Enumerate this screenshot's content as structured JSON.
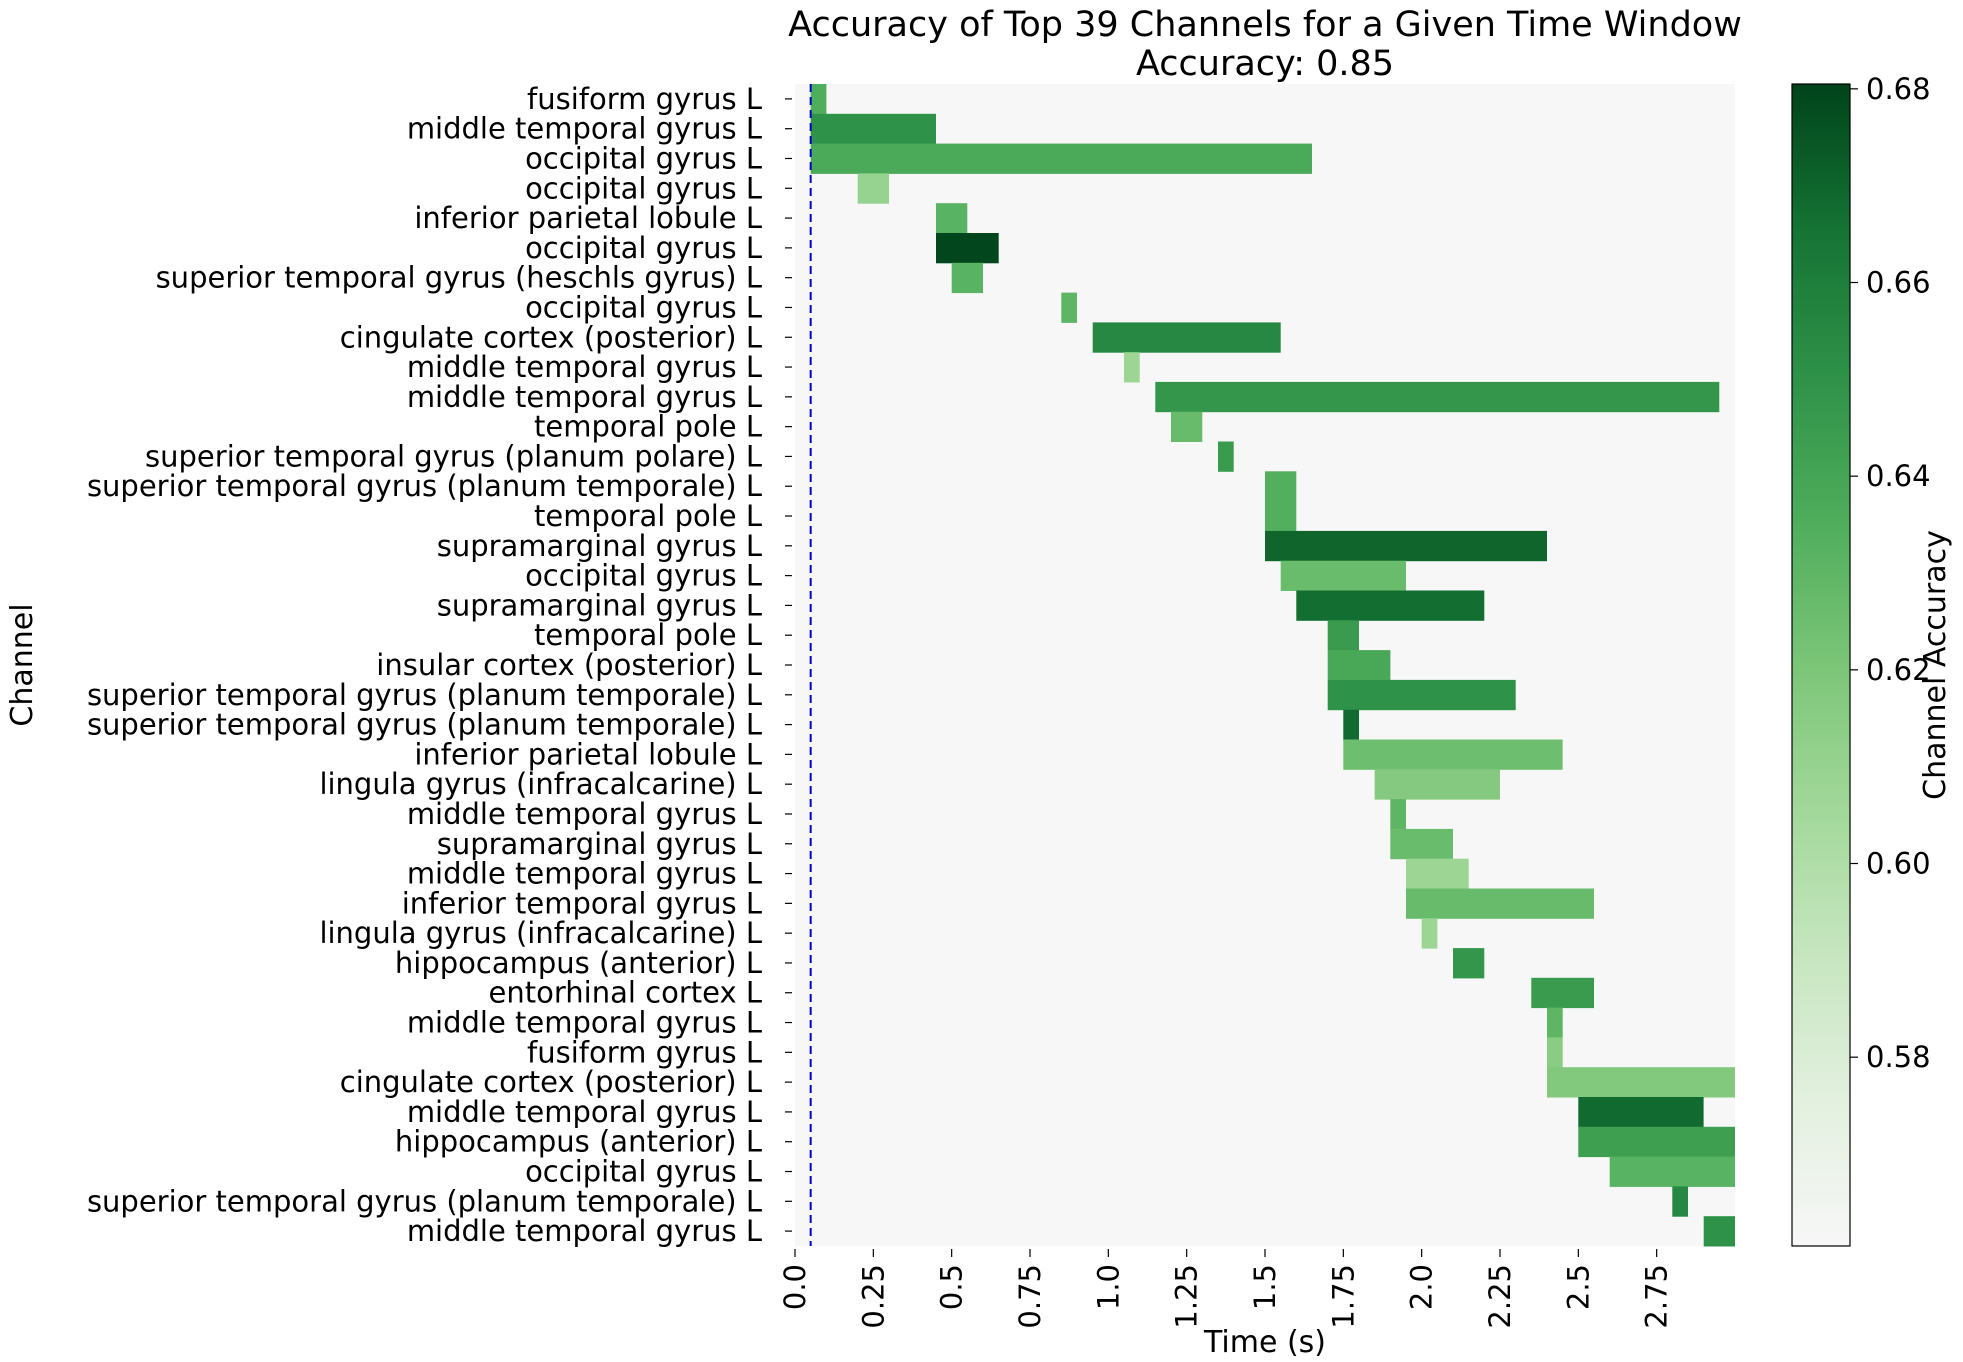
{
  "chart_data": {
    "type": "heatmap",
    "title_lines": [
      "Accuracy of Top 39 Channels for a Given Time Window",
      "Accuracy: 0.85"
    ],
    "xlabel": "Time (s)",
    "ylabel": "Channel",
    "xlim": [
      0,
      3.0
    ],
    "x_ticks": [
      0.0,
      0.25,
      0.5,
      0.75,
      1.0,
      1.25,
      1.5,
      1.75,
      2.0,
      2.25,
      2.5,
      2.75
    ],
    "x_tick_labels": [
      "0.0",
      "0.25",
      "0.5",
      "0.75",
      "1.0",
      "1.25",
      "1.5",
      "1.75",
      "2.0",
      "2.25",
      "2.5",
      "2.75"
    ],
    "reference_line_x": 0.05,
    "colorbar": {
      "label": "Channel Accuracy",
      "vmin": 0.5605,
      "vmax": 0.6805,
      "ticks": [
        0.58,
        0.6,
        0.62,
        0.64,
        0.66,
        0.68
      ],
      "tick_labels": [
        "0.58",
        "0.60",
        "0.62",
        "0.64",
        "0.66",
        "0.68"
      ]
    },
    "background_color": "#f7f7f7",
    "channels": [
      {
        "label": "fusiform gyrus L",
        "start": 0.05,
        "end": 0.1,
        "value": 0.635
      },
      {
        "label": "middle temporal gyrus L",
        "start": 0.05,
        "end": 0.45,
        "value": 0.65
      },
      {
        "label": "occipital gyrus L",
        "start": 0.05,
        "end": 1.65,
        "value": 0.637
      },
      {
        "label": "occipital gyrus L",
        "start": 0.2,
        "end": 0.3,
        "value": 0.61
      },
      {
        "label": "inferior parietal lobule L",
        "start": 0.45,
        "end": 0.55,
        "value": 0.632
      },
      {
        "label": "occipital gyrus L",
        "start": 0.45,
        "end": 0.65,
        "value": 0.68
      },
      {
        "label": "superior temporal gyrus (heschls gyrus) L",
        "start": 0.5,
        "end": 0.6,
        "value": 0.632
      },
      {
        "label": "occipital gyrus L",
        "start": 0.85,
        "end": 0.9,
        "value": 0.63
      },
      {
        "label": "cingulate cortex (posterior) L",
        "start": 0.95,
        "end": 1.55,
        "value": 0.655
      },
      {
        "label": "middle temporal gyrus L",
        "start": 1.05,
        "end": 1.1,
        "value": 0.608
      },
      {
        "label": "middle temporal gyrus L",
        "start": 1.15,
        "end": 2.95,
        "value": 0.648
      },
      {
        "label": "temporal pole L",
        "start": 1.2,
        "end": 1.3,
        "value": 0.627
      },
      {
        "label": "superior temporal gyrus (planum polare) L",
        "start": 1.35,
        "end": 1.4,
        "value": 0.645
      },
      {
        "label": "superior temporal gyrus (planum temporale) L",
        "start": 1.5,
        "end": 1.6,
        "value": 0.634
      },
      {
        "label": "temporal pole L",
        "start": 1.5,
        "end": 1.6,
        "value": 0.634
      },
      {
        "label": "supramarginal gyrus L",
        "start": 1.5,
        "end": 2.4,
        "value": 0.67
      },
      {
        "label": "occipital gyrus L",
        "start": 1.55,
        "end": 1.95,
        "value": 0.626
      },
      {
        "label": "supramarginal gyrus L",
        "start": 1.6,
        "end": 2.2,
        "value": 0.667
      },
      {
        "label": "temporal pole L",
        "start": 1.7,
        "end": 1.8,
        "value": 0.645
      },
      {
        "label": "insular cortex (posterior) L",
        "start": 1.7,
        "end": 1.9,
        "value": 0.638
      },
      {
        "label": "superior temporal gyrus (planum temporale) L",
        "start": 1.7,
        "end": 2.3,
        "value": 0.65
      },
      {
        "label": "superior temporal gyrus (planum temporale) L",
        "start": 1.75,
        "end": 1.8,
        "value": 0.668
      },
      {
        "label": "inferior parietal lobule L",
        "start": 1.75,
        "end": 2.45,
        "value": 0.625
      },
      {
        "label": "lingula gyrus (infracalcarine) L",
        "start": 1.85,
        "end": 2.25,
        "value": 0.617
      },
      {
        "label": "middle temporal gyrus L",
        "start": 1.9,
        "end": 1.95,
        "value": 0.63
      },
      {
        "label": "supramarginal gyrus L",
        "start": 1.9,
        "end": 2.1,
        "value": 0.626
      },
      {
        "label": "middle temporal gyrus L",
        "start": 1.95,
        "end": 2.15,
        "value": 0.608
      },
      {
        "label": "inferior temporal gyrus L",
        "start": 1.95,
        "end": 2.55,
        "value": 0.627
      },
      {
        "label": "lingula gyrus (infracalcarine) L",
        "start": 2.0,
        "end": 2.05,
        "value": 0.608
      },
      {
        "label": "hippocampus (anterior) L",
        "start": 2.1,
        "end": 2.2,
        "value": 0.648
      },
      {
        "label": "entorhinal cortex L",
        "start": 2.35,
        "end": 2.55,
        "value": 0.645
      },
      {
        "label": "middle temporal gyrus L",
        "start": 2.4,
        "end": 2.45,
        "value": 0.63
      },
      {
        "label": "fusiform gyrus L",
        "start": 2.4,
        "end": 2.45,
        "value": 0.615
      },
      {
        "label": "cingulate cortex (posterior) L",
        "start": 2.4,
        "end": 3.0,
        "value": 0.618
      },
      {
        "label": "middle temporal gyrus L",
        "start": 2.5,
        "end": 2.9,
        "value": 0.668
      },
      {
        "label": "hippocampus (anterior) L",
        "start": 2.5,
        "end": 3.0,
        "value": 0.643
      },
      {
        "label": "occipital gyrus L",
        "start": 2.6,
        "end": 3.0,
        "value": 0.632
      },
      {
        "label": "superior temporal gyrus (planum temporale) L",
        "start": 2.8,
        "end": 2.85,
        "value": 0.655
      },
      {
        "label": "middle temporal gyrus L",
        "start": 2.9,
        "end": 3.0,
        "value": 0.65
      }
    ]
  }
}
